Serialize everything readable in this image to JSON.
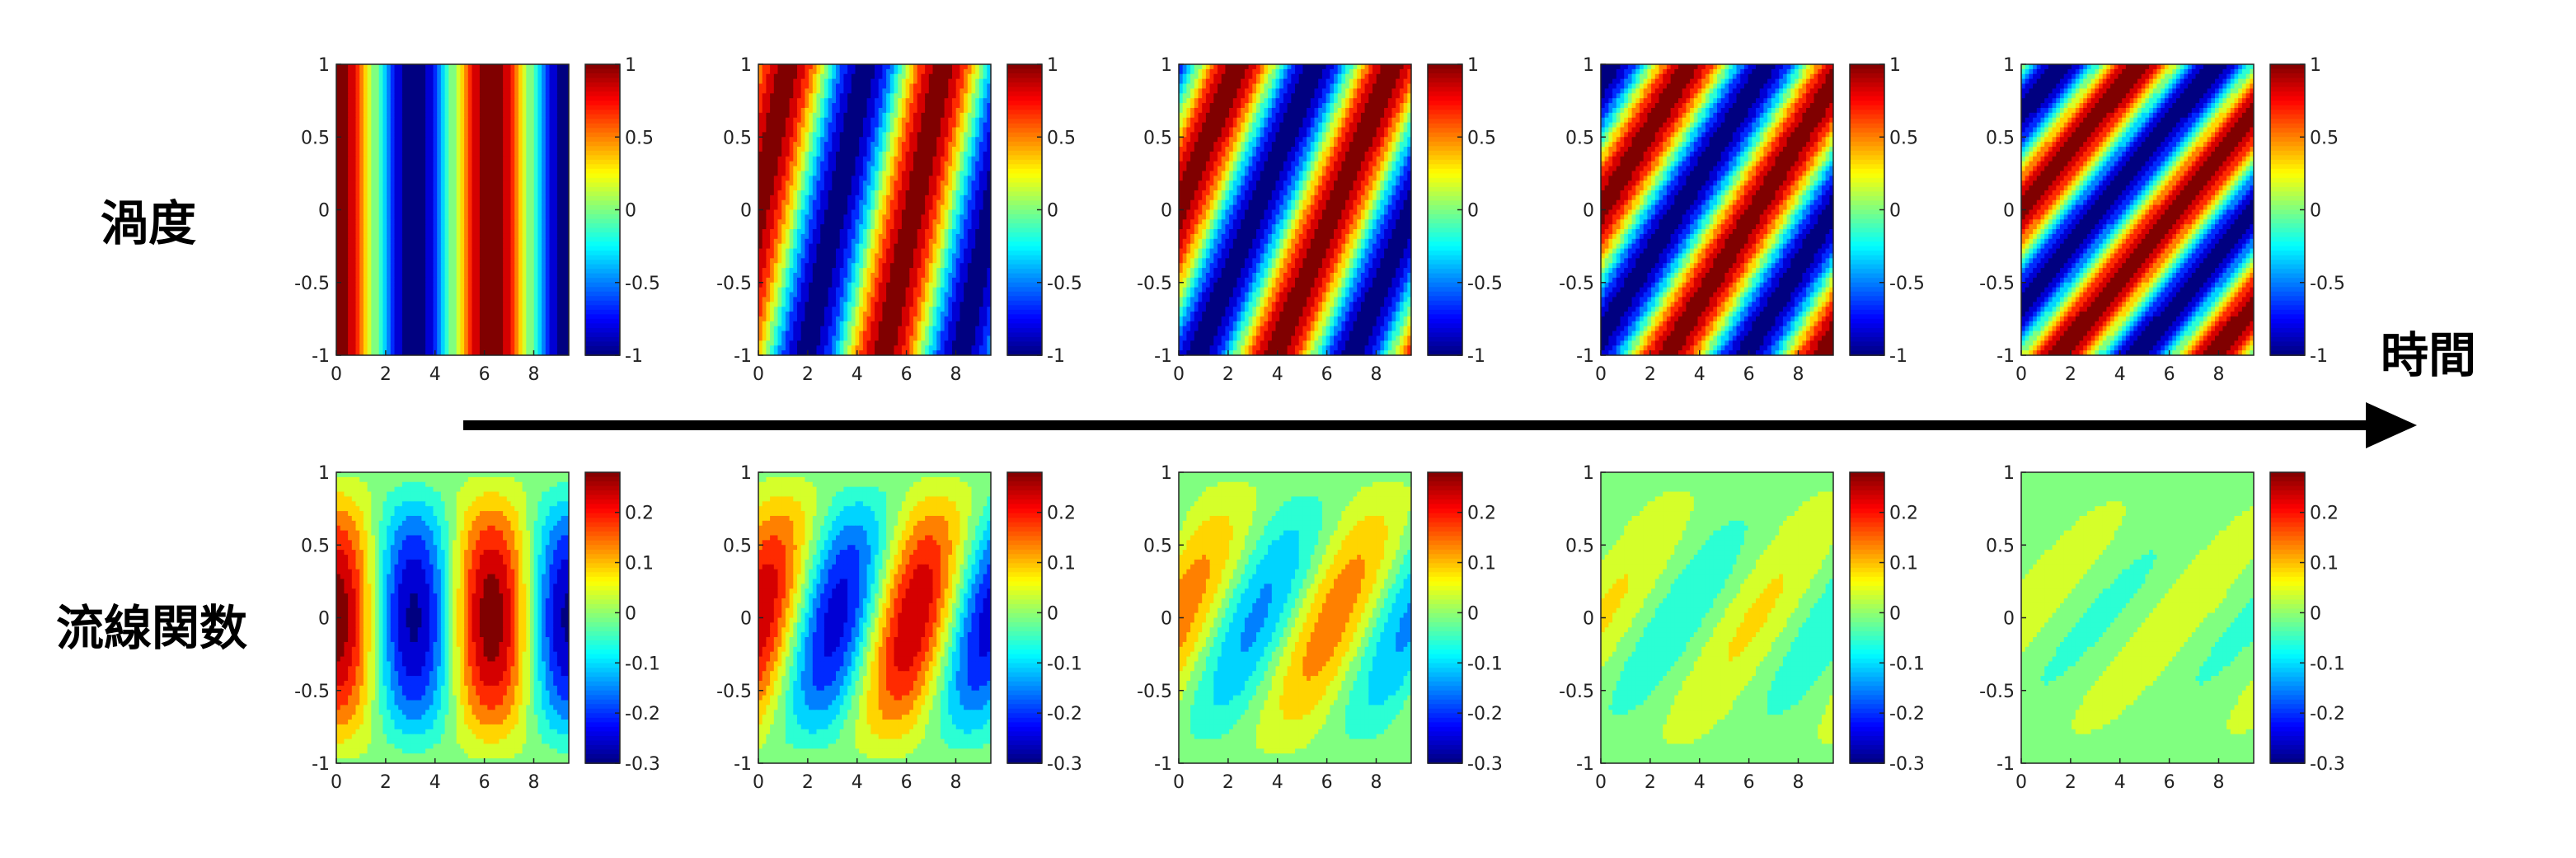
{
  "labels": {
    "vorticity": "渦度",
    "streamfunction": "流線関数",
    "time": "時間"
  },
  "colormap": "jet",
  "chart_data": [
    {
      "type": "heatmap",
      "row": "vorticity",
      "panel": 1,
      "field": "vorticity",
      "shear": 0.0,
      "amplitude": 1,
      "xlim": [
        0,
        9.42
      ],
      "ylim": [
        -1,
        1
      ],
      "xticks": [
        "0",
        "2",
        "4",
        "6",
        "8"
      ],
      "yticks": [
        "-1",
        "-0.5",
        "0",
        "0.5",
        "1"
      ],
      "colorbar": {
        "range": [
          -1,
          1
        ],
        "ticks": [
          "-1",
          "-0.5",
          "0",
          "0.5",
          "1"
        ]
      }
    },
    {
      "type": "heatmap",
      "row": "vorticity",
      "panel": 2,
      "field": "vorticity",
      "shear": 1.2,
      "amplitude": 1,
      "xlim": [
        0,
        9.42
      ],
      "ylim": [
        -1,
        1
      ],
      "xticks": [
        "0",
        "2",
        "4",
        "6",
        "8"
      ],
      "yticks": [
        "-1",
        "-0.5",
        "0",
        "0.5",
        "1"
      ],
      "colorbar": {
        "range": [
          -1,
          1
        ],
        "ticks": [
          "-1",
          "-0.5",
          "0",
          "0.5",
          "1"
        ]
      }
    },
    {
      "type": "heatmap",
      "row": "vorticity",
      "panel": 3,
      "field": "vorticity",
      "shear": 2.4,
      "amplitude": 1,
      "xlim": [
        0,
        9.42
      ],
      "ylim": [
        -1,
        1
      ],
      "xticks": [
        "0",
        "2",
        "4",
        "6",
        "8"
      ],
      "yticks": [
        "-1",
        "-0.5",
        "0",
        "0.5",
        "1"
      ],
      "colorbar": {
        "range": [
          -1,
          1
        ],
        "ticks": [
          "-1",
          "-0.5",
          "0",
          "0.5",
          "1"
        ]
      }
    },
    {
      "type": "heatmap",
      "row": "vorticity",
      "panel": 4,
      "field": "vorticity",
      "shear": 3.6,
      "amplitude": 1,
      "xlim": [
        0,
        9.42
      ],
      "ylim": [
        -1,
        1
      ],
      "xticks": [
        "0",
        "2",
        "4",
        "6",
        "8"
      ],
      "yticks": [
        "-1",
        "-0.5",
        "0",
        "0.5",
        "1"
      ],
      "colorbar": {
        "range": [
          -1,
          1
        ],
        "ticks": [
          "-1",
          "-0.5",
          "0",
          "0.5",
          "1"
        ]
      }
    },
    {
      "type": "heatmap",
      "row": "vorticity",
      "panel": 5,
      "field": "vorticity",
      "shear": 4.8,
      "amplitude": 1,
      "xlim": [
        0,
        9.42
      ],
      "ylim": [
        -1,
        1
      ],
      "xticks": [
        "0",
        "2",
        "4",
        "6",
        "8"
      ],
      "yticks": [
        "-1",
        "-0.5",
        "0",
        "0.5",
        "1"
      ],
      "colorbar": {
        "range": [
          -1,
          1
        ],
        "ticks": [
          "-1",
          "-0.5",
          "0",
          "0.5",
          "1"
        ]
      }
    },
    {
      "type": "heatmap",
      "row": "streamfunction",
      "panel": 1,
      "field": "streamfunction",
      "shear": 0.0,
      "amplitude": 0.285,
      "xlim": [
        0,
        9.42
      ],
      "ylim": [
        -1,
        1
      ],
      "xticks": [
        "0",
        "2",
        "4",
        "6",
        "8"
      ],
      "yticks": [
        "-1",
        "-0.5",
        "0",
        "0.5",
        "1"
      ],
      "colorbar": {
        "range": [
          -0.3,
          0.28
        ],
        "ticks": [
          "-0.3",
          "-0.2",
          "-0.1",
          "0",
          "0.1",
          "0.2"
        ]
      }
    },
    {
      "type": "heatmap",
      "row": "streamfunction",
      "panel": 2,
      "field": "streamfunction",
      "shear": 1.2,
      "amplitude": 0.25,
      "xlim": [
        0,
        9.42
      ],
      "ylim": [
        -1,
        1
      ],
      "xticks": [
        "0",
        "2",
        "4",
        "6",
        "8"
      ],
      "yticks": [
        "-1",
        "-0.5",
        "0",
        "0.5",
        "1"
      ],
      "colorbar": {
        "range": [
          -0.3,
          0.28
        ],
        "ticks": [
          "-0.3",
          "-0.2",
          "-0.1",
          "0",
          "0.1",
          "0.2"
        ]
      }
    },
    {
      "type": "heatmap",
      "row": "streamfunction",
      "panel": 3,
      "field": "streamfunction",
      "shear": 2.4,
      "amplitude": 0.14,
      "xlim": [
        0,
        9.42
      ],
      "ylim": [
        -1,
        1
      ],
      "xticks": [
        "0",
        "2",
        "4",
        "6",
        "8"
      ],
      "yticks": [
        "-1",
        "-0.5",
        "0",
        "0.5",
        "1"
      ],
      "colorbar": {
        "range": [
          -0.3,
          0.28
        ],
        "ticks": [
          "-0.3",
          "-0.2",
          "-0.1",
          "0",
          "0.1",
          "0.2"
        ]
      }
    },
    {
      "type": "heatmap",
      "row": "streamfunction",
      "panel": 4,
      "field": "streamfunction",
      "shear": 3.6,
      "amplitude": 0.07,
      "xlim": [
        0,
        9.42
      ],
      "ylim": [
        -1,
        1
      ],
      "xticks": [
        "0",
        "2",
        "4",
        "6",
        "8"
      ],
      "yticks": [
        "-1",
        "-0.5",
        "0",
        "0.5",
        "1"
      ],
      "colorbar": {
        "range": [
          -0.3,
          0.28
        ],
        "ticks": [
          "-0.3",
          "-0.2",
          "-0.1",
          "0",
          "0.1",
          "0.2"
        ]
      }
    },
    {
      "type": "heatmap",
      "row": "streamfunction",
      "panel": 5,
      "field": "streamfunction",
      "shear": 4.8,
      "amplitude": 0.045,
      "xlim": [
        0,
        9.42
      ],
      "ylim": [
        -1,
        1
      ],
      "xticks": [
        "0",
        "2",
        "4",
        "6",
        "8"
      ],
      "yticks": [
        "-1",
        "-0.5",
        "0",
        "0.5",
        "1"
      ],
      "colorbar": {
        "range": [
          -0.3,
          0.28
        ],
        "ticks": [
          "-0.3",
          "-0.2",
          "-0.1",
          "0",
          "0.1",
          "0.2"
        ]
      }
    }
  ]
}
